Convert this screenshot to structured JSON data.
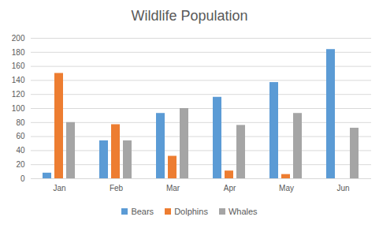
{
  "chart_data": {
    "type": "bar",
    "title": "Wildlife Population",
    "categories": [
      "Jan",
      "Feb",
      "Mar",
      "Apr",
      "May",
      "Jun"
    ],
    "series": [
      {
        "name": "Bears",
        "color": "#5b9bd5",
        "values": [
          8,
          54,
          93,
          116,
          137,
          184
        ]
      },
      {
        "name": "Dolphins",
        "color": "#ed7d31",
        "values": [
          150,
          77,
          32,
          11,
          6,
          0
        ]
      },
      {
        "name": "Whales",
        "color": "#a5a5a5",
        "values": [
          80,
          54,
          100,
          76,
          93,
          72
        ]
      }
    ],
    "ylim": [
      0,
      200
    ],
    "yticks": [
      0,
      20,
      40,
      60,
      80,
      100,
      120,
      140,
      160,
      180,
      200
    ],
    "grid": true,
    "legend": "bottom"
  }
}
